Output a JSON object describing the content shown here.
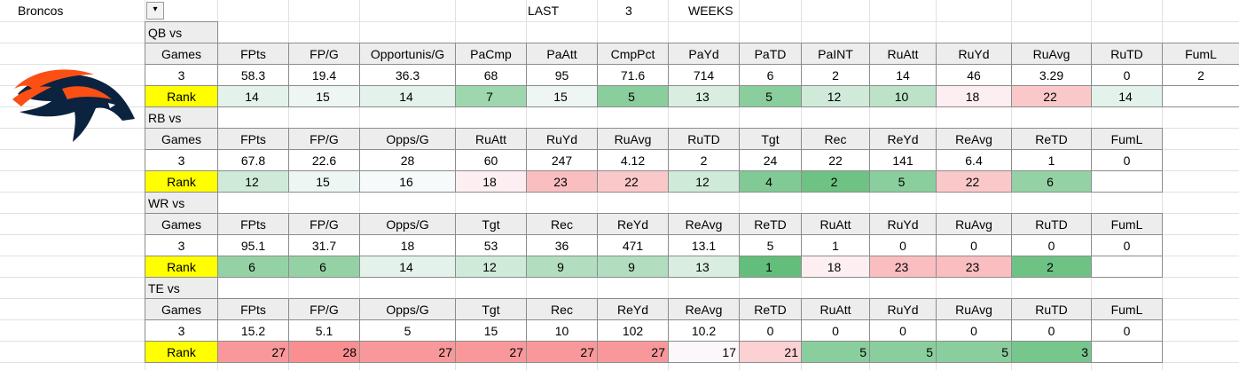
{
  "sheet": {
    "team": "Broncos",
    "last_label": "LAST",
    "weeks": 3,
    "weeks_label": "WEEKS"
  },
  "sections": [
    {
      "title": "QB vs",
      "rank_label": "Rank",
      "rank_align": "center",
      "headers": [
        "Games",
        "FPts",
        "FP/G",
        "Opportunis/G",
        "PaCmp",
        "PaAtt",
        "CmpPct",
        "PaYd",
        "PaTD",
        "PaINT",
        "RuAtt",
        "RuYd",
        "RuAvg",
        "RuTD",
        "FumL"
      ],
      "values": [
        3,
        58.3,
        19.4,
        36.3,
        68,
        95,
        71.6,
        714,
        6,
        2,
        14,
        46,
        3.29,
        0,
        2
      ],
      "ranks": [
        14,
        15,
        14,
        7,
        15,
        5,
        13,
        5,
        12,
        10,
        18,
        22,
        14
      ]
    },
    {
      "title": "RB vs",
      "rank_label": "Rank",
      "rank_align": "center",
      "headers": [
        "Games",
        "FPts",
        "FP/G",
        "Opps/G",
        "RuAtt",
        "RuYd",
        "RuAvg",
        "RuTD",
        "Tgt",
        "Rec",
        "ReYd",
        "ReAvg",
        "ReTD",
        "FumL"
      ],
      "values": [
        3,
        67.8,
        22.6,
        28,
        60,
        247,
        4.12,
        2,
        24,
        22,
        141,
        6.4,
        1,
        0
      ],
      "ranks": [
        12,
        15,
        16,
        18,
        23,
        22,
        12,
        4,
        2,
        5,
        22,
        6
      ]
    },
    {
      "title": "WR vs",
      "rank_label": "Rank",
      "rank_align": "center",
      "headers": [
        "Games",
        "FPts",
        "FP/G",
        "Opps/G",
        "Tgt",
        "Rec",
        "ReYd",
        "ReAvg",
        "ReTD",
        "RuAtt",
        "RuYd",
        "RuAvg",
        "RuTD",
        "FumL"
      ],
      "values": [
        3,
        95.1,
        31.7,
        18,
        53,
        36,
        471,
        13.1,
        5,
        1,
        0,
        0,
        0,
        0
      ],
      "ranks": [
        6,
        6,
        14,
        12,
        9,
        9,
        13,
        1,
        18,
        23,
        23,
        2
      ]
    },
    {
      "title": "TE vs",
      "rank_label": "Rank",
      "rank_align": "right",
      "headers": [
        "Games",
        "FPts",
        "FP/G",
        "Opps/G",
        "Tgt",
        "Rec",
        "ReYd",
        "ReAvg",
        "ReTD",
        "RuAtt",
        "RuYd",
        "RuAvg",
        "RuTD",
        "FumL"
      ],
      "values": [
        3,
        15.2,
        5.1,
        5,
        15,
        10,
        102,
        10.2,
        0,
        0,
        0,
        0,
        0,
        0
      ],
      "ranks": [
        27,
        28,
        27,
        27,
        27,
        27,
        17,
        21,
        5,
        5,
        5,
        3
      ]
    }
  ]
}
